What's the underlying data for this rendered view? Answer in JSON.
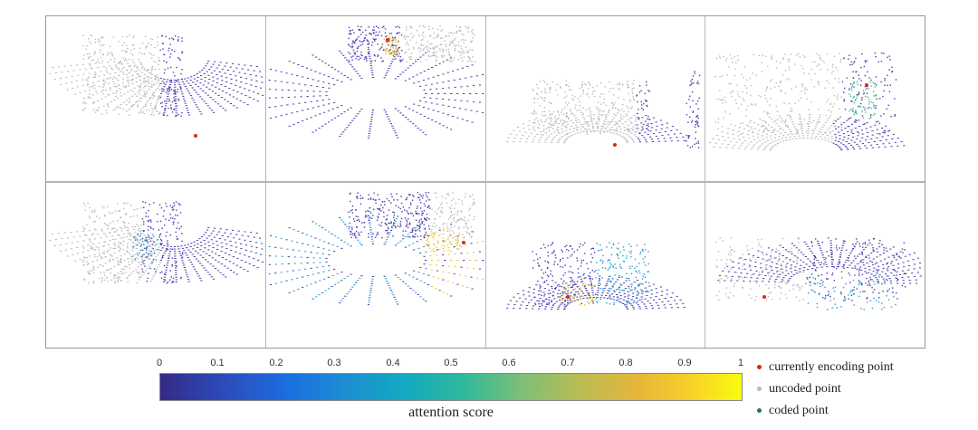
{
  "figure": {
    "rows": 2,
    "columns": 4
  },
  "colorbar": {
    "label": "attention score",
    "ticks": [
      "0",
      "0.1",
      "0.2",
      "0.3",
      "0.4",
      "0.5",
      "0.6",
      "0.7",
      "0.8",
      "0.9",
      "1"
    ],
    "colormap_start": "#352a87",
    "colormap_end": "#f9fb0e"
  },
  "legend": {
    "items": [
      {
        "label": "currently encoding point",
        "color": "#d42a1c"
      },
      {
        "label": "uncoded point",
        "color": "#b8b8b8"
      },
      {
        "label": "coded point",
        "color": "#1d7a55"
      }
    ]
  }
}
